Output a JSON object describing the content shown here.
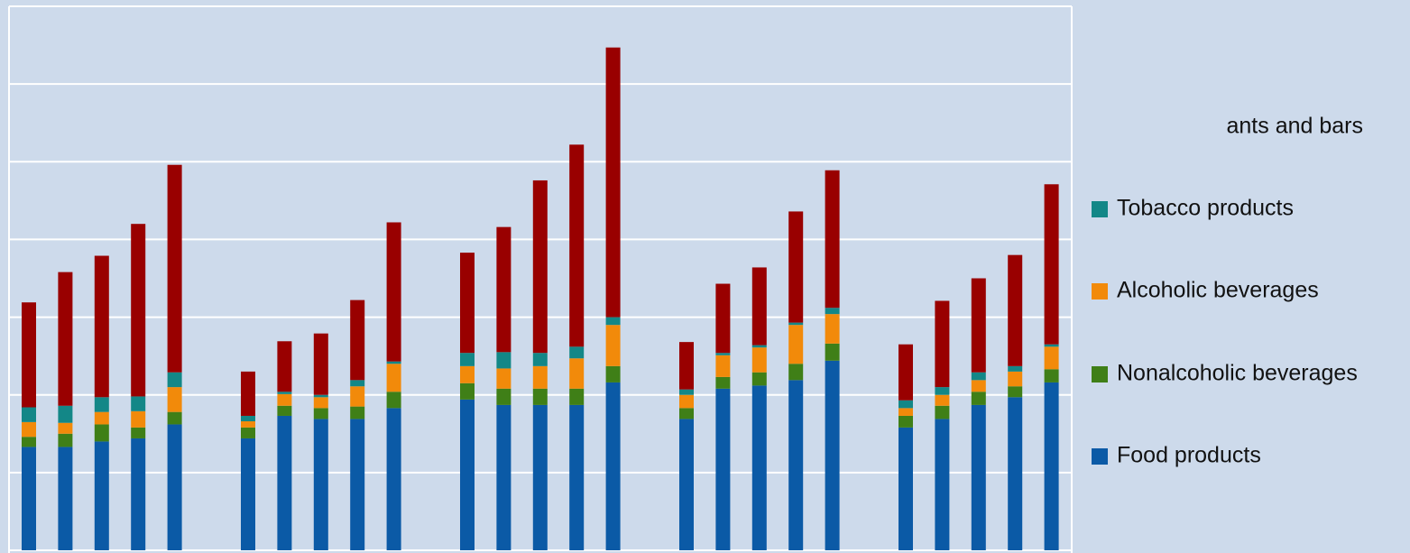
{
  "chart_data": {
    "type": "stacked_bar",
    "categories": [
      null,
      null,
      null,
      null,
      null,
      null,
      null,
      null,
      null,
      null,
      null,
      null,
      null,
      null,
      null,
      null,
      null,
      null,
      null,
      null,
      null,
      null,
      null,
      null,
      null
    ],
    "series": [
      {
        "name": "Food products",
        "color": "#0b5aa6",
        "values": [
          133,
          133,
          140,
          144,
          162,
          144,
          173,
          169,
          169,
          183,
          194,
          187,
          187,
          187,
          216,
          169,
          208,
          212,
          219,
          244,
          158,
          169,
          187,
          197,
          216
        ]
      },
      {
        "name": "Nonalcoholic beverages",
        "color": "#3f7f17",
        "values": [
          13,
          17,
          22,
          14,
          16,
          14,
          13,
          14,
          16,
          21,
          21,
          21,
          21,
          21,
          21,
          14,
          15,
          17,
          21,
          22,
          15,
          17,
          17,
          14,
          17
        ]
      },
      {
        "name": "Alcoholic beverages",
        "color": "#f28a0a",
        "values": [
          19,
          14,
          16,
          21,
          32,
          8,
          15,
          14,
          26,
          36,
          22,
          26,
          29,
          39,
          53,
          17,
          28,
          32,
          50,
          38,
          10,
          14,
          15,
          19,
          29
        ]
      },
      {
        "name": "Tobacco products",
        "color": "#138787",
        "values": [
          19,
          22,
          19,
          19,
          19,
          7,
          3,
          3,
          8,
          3,
          17,
          21,
          17,
          15,
          10,
          7,
          3,
          3,
          3,
          8,
          10,
          10,
          10,
          7,
          3
        ]
      },
      {
        "name": "ants and bars",
        "color": "#990000",
        "values": [
          135,
          172,
          182,
          222,
          267,
          57,
          65,
          79,
          103,
          179,
          129,
          161,
          222,
          260,
          347,
          61,
          89,
          100,
          143,
          177,
          72,
          111,
          121,
          143,
          206
        ]
      }
    ],
    "ylim": [
      0,
      700
    ],
    "yticks": [
      0,
      100,
      200,
      300,
      400,
      500,
      600,
      700
    ],
    "grid": true,
    "tick_labels": false,
    "legend": "right"
  }
}
